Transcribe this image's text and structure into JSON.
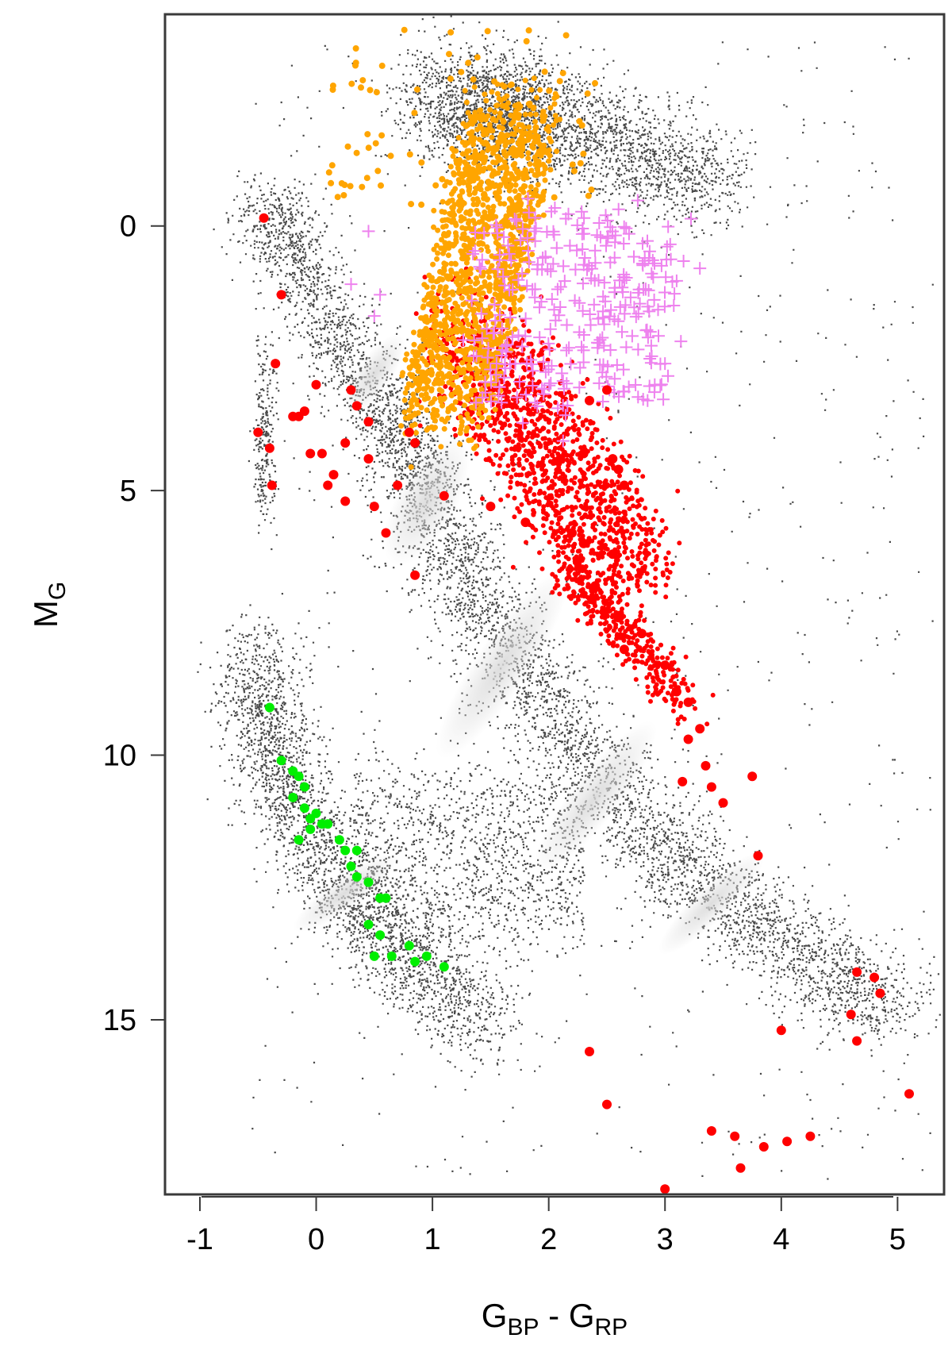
{
  "chart_data": {
    "type": "scatter",
    "title": "",
    "xlabel": {
      "main1": "G",
      "sub1": "BP",
      "sep": " - ",
      "main2": "G",
      "sub2": "RP"
    },
    "ylabel": {
      "main": "M",
      "sub": "G"
    },
    "xlim": [
      -1.3,
      5.4
    ],
    "ylim": [
      18.3,
      -4.0
    ],
    "y_inverted": true,
    "x_ticks": [
      -1,
      0,
      1,
      2,
      3,
      4,
      5
    ],
    "x_tick_labels": [
      "-1",
      "0",
      "1",
      "2",
      "3",
      "4",
      "5"
    ],
    "y_ticks": [
      0,
      5,
      10,
      15
    ],
    "y_tick_labels": [
      "0",
      "5",
      "10",
      "15"
    ],
    "grid": false,
    "legend": "none",
    "colors": {
      "background_stars": "#4a4a4a",
      "density_core": "#d8d8d8",
      "giants": "#ffa500",
      "main_sequence_sample": "#ff0000",
      "crosses": "#ee82ee",
      "white_dwarfs": "#00ee00"
    },
    "series": [
      {
        "marker": "dot",
        "color": "#ff0000",
        "points": [
          [
            -0.45,
            -0.15
          ],
          [
            -0.3,
            1.3
          ],
          [
            -0.35,
            2.6
          ],
          [
            -0.5,
            3.9
          ],
          [
            -0.4,
            4.2
          ],
          [
            -0.38,
            4.9
          ],
          [
            -0.2,
            3.6
          ],
          [
            -0.15,
            3.6
          ],
          [
            -0.1,
            3.5
          ],
          [
            0.0,
            3.0
          ],
          [
            -0.05,
            4.3
          ],
          [
            0.05,
            4.3
          ],
          [
            0.15,
            4.7
          ],
          [
            0.25,
            4.1
          ],
          [
            0.3,
            3.1
          ],
          [
            0.35,
            3.4
          ],
          [
            0.45,
            3.7
          ],
          [
            0.45,
            4.4
          ],
          [
            0.5,
            5.3
          ],
          [
            0.6,
            5.8
          ],
          [
            0.7,
            4.9
          ],
          [
            0.85,
            6.6
          ],
          [
            0.1,
            4.9
          ],
          [
            0.25,
            5.2
          ],
          [
            0.85,
            4.1
          ],
          [
            0.8,
            3.9
          ],
          [
            1.1,
            5.1
          ],
          [
            1.5,
            5.3
          ],
          [
            1.8,
            5.6
          ],
          [
            2.1,
            4.4
          ],
          [
            2.3,
            4.3
          ],
          [
            2.55,
            4.4
          ],
          [
            2.6,
            4.6
          ],
          [
            2.65,
            4.9
          ],
          [
            2.2,
            5.8
          ],
          [
            2.3,
            6.0
          ],
          [
            2.55,
            6.2
          ],
          [
            2.4,
            6.8
          ],
          [
            2.6,
            7.4
          ],
          [
            2.8,
            7.7
          ],
          [
            2.65,
            8.0
          ],
          [
            3.0,
            8.3
          ],
          [
            3.1,
            8.8
          ],
          [
            3.2,
            9.0
          ],
          [
            3.3,
            9.5
          ],
          [
            3.2,
            9.7
          ],
          [
            3.35,
            10.2
          ],
          [
            3.15,
            10.5
          ],
          [
            3.4,
            10.6
          ],
          [
            3.5,
            10.9
          ],
          [
            3.75,
            10.4
          ],
          [
            3.8,
            11.9
          ],
          [
            2.5,
            3.1
          ],
          [
            2.35,
            3.3
          ],
          [
            2.35,
            15.6
          ],
          [
            2.5,
            16.6
          ],
          [
            3.4,
            17.1
          ],
          [
            3.6,
            17.2
          ],
          [
            3.85,
            17.4
          ],
          [
            4.05,
            17.3
          ],
          [
            4.25,
            17.2
          ],
          [
            3.65,
            17.8
          ],
          [
            4.0,
            15.2
          ],
          [
            4.6,
            14.9
          ],
          [
            4.65,
            15.4
          ],
          [
            4.65,
            14.1
          ],
          [
            4.8,
            14.2
          ],
          [
            4.85,
            14.5
          ],
          [
            5.1,
            16.4
          ],
          [
            3.0,
            18.2
          ]
        ]
      },
      {
        "marker": "dot",
        "color": "#00ee00",
        "points": [
          [
            -0.4,
            9.1
          ],
          [
            -0.3,
            10.1
          ],
          [
            -0.2,
            10.3
          ],
          [
            -0.15,
            10.4
          ],
          [
            -0.1,
            10.6
          ],
          [
            -0.2,
            10.8
          ],
          [
            -0.1,
            11.0
          ],
          [
            -0.05,
            11.2
          ],
          [
            0.0,
            11.1
          ],
          [
            -0.05,
            11.4
          ],
          [
            0.05,
            11.3
          ],
          [
            0.1,
            11.3
          ],
          [
            0.2,
            11.6
          ],
          [
            0.25,
            11.8
          ],
          [
            0.35,
            11.8
          ],
          [
            0.3,
            12.1
          ],
          [
            0.35,
            12.3
          ],
          [
            0.45,
            12.4
          ],
          [
            0.55,
            12.7
          ],
          [
            0.6,
            12.7
          ],
          [
            0.45,
            13.2
          ],
          [
            0.55,
            13.4
          ],
          [
            0.5,
            13.8
          ],
          [
            0.65,
            13.8
          ],
          [
            0.8,
            13.6
          ],
          [
            0.85,
            13.9
          ],
          [
            0.95,
            13.8
          ],
          [
            1.1,
            14.0
          ],
          [
            -0.15,
            11.6
          ]
        ]
      }
    ]
  }
}
